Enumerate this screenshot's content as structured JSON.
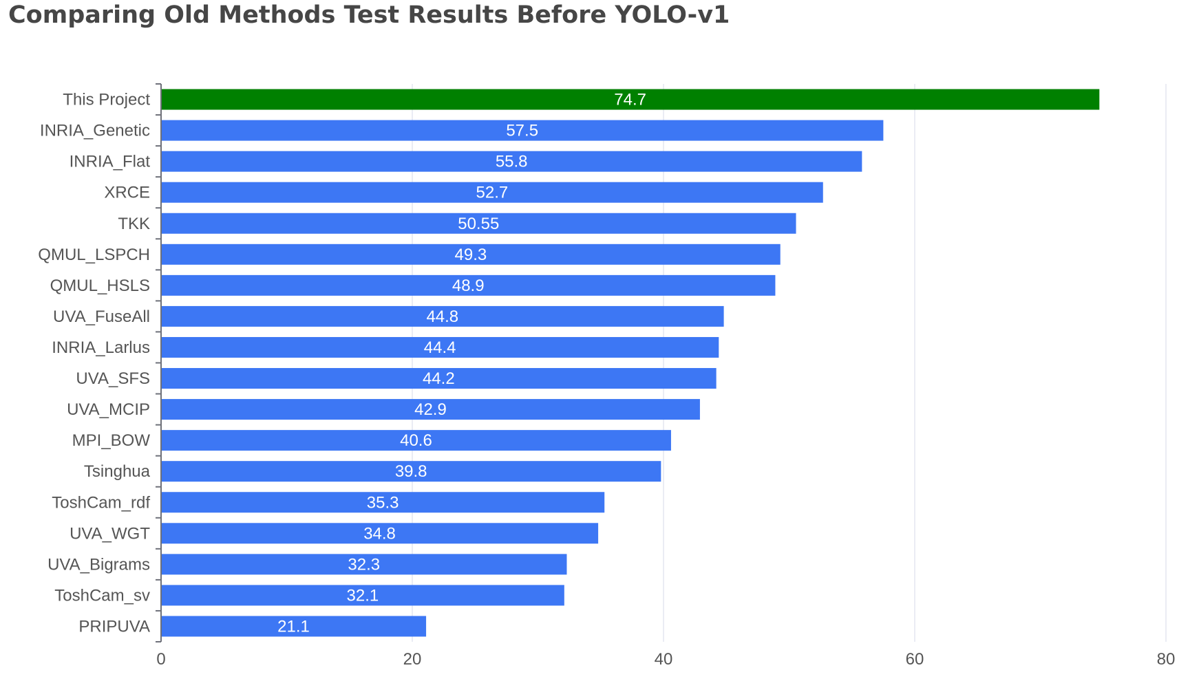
{
  "title": "Comparing Old Methods Test Results Before YOLO-v1",
  "colors": {
    "highlight": "#008000",
    "bar": "#3d77f4",
    "grid": "#e3e6f0",
    "axis": "#6e7079",
    "text": "#555555",
    "label_text": "#ffffff"
  },
  "chart_data": {
    "type": "bar",
    "orientation": "horizontal",
    "title": "Comparing Old Methods Test Results Before YOLO-v1",
    "categories": [
      "This Project",
      "INRIA_Genetic",
      "INRIA_Flat",
      "XRCE",
      "TKK",
      "QMUL_LSPCH",
      "QMUL_HSLS",
      "UVA_FuseAll",
      "INRIA_Larlus",
      "UVA_SFS",
      "UVA_MCIP",
      "MPI_BOW",
      "Tsinghua",
      "ToshCam_rdf",
      "UVA_WGT",
      "UVA_Bigrams",
      "ToshCam_sv",
      "PRIPUVA"
    ],
    "values": [
      74.7,
      57.5,
      55.8,
      52.7,
      50.55,
      49.3,
      48.9,
      44.8,
      44.4,
      44.2,
      42.9,
      40.6,
      39.8,
      35.3,
      34.8,
      32.3,
      32.1,
      21.1
    ],
    "value_labels": [
      "74.7",
      "57.5",
      "55.8",
      "52.7",
      "50.55",
      "49.3",
      "48.9",
      "44.8",
      "44.4",
      "44.2",
      "42.9",
      "40.6",
      "39.8",
      "35.3",
      "34.8",
      "32.3",
      "32.1",
      "21.1"
    ],
    "highlight_category": "This Project",
    "x_ticks": [
      "0",
      "20",
      "40",
      "60",
      "80"
    ],
    "xlim": [
      0,
      80
    ],
    "xlabel": "",
    "ylabel": "",
    "grid": "vertical",
    "legend": "none",
    "data_labels": "inside-center"
  }
}
